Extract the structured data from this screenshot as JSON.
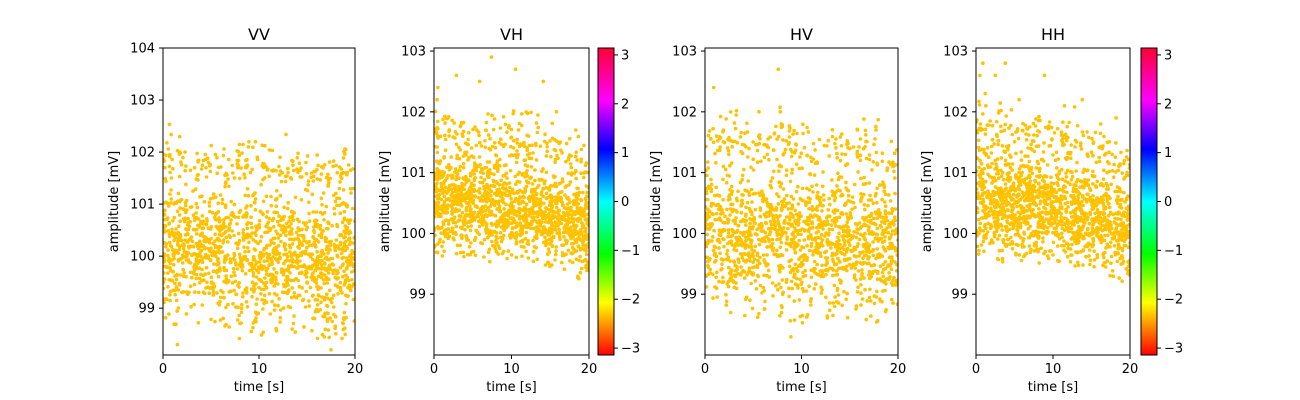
{
  "chart_data": [
    {
      "type": "scatter",
      "title": "VV",
      "xlabel": "time [s]",
      "ylabel": "amplitude [mV]",
      "xlim": [
        0,
        20
      ],
      "ylim": [
        98.1,
        104.0
      ],
      "xticks": [
        0,
        10,
        20
      ],
      "yticks": [
        99,
        100,
        101,
        102,
        103,
        104
      ],
      "point_color": "#ffc200",
      "colorbar": false,
      "series": [
        {
          "envelope": {
            "t": [
              0,
              1,
              2,
              3,
              4,
              5,
              6,
              7,
              8,
              9,
              10,
              11,
              12,
              13,
              14,
              15,
              16,
              17,
              18,
              19,
              20
            ],
            "upper": [
              101.8,
              101.5,
              101.7,
              101.6,
              101.5,
              101.6,
              101.5,
              101.5,
              101.7,
              101.6,
              101.6,
              101.5,
              101.6,
              101.5,
              101.5,
              101.4,
              101.5,
              101.4,
              101.5,
              101.6,
              101.3
            ],
            "lower": [
              98.6,
              98.7,
              98.6,
              98.7,
              98.6,
              98.5,
              98.6,
              98.6,
              98.4,
              98.5,
              98.4,
              98.6,
              98.5,
              98.5,
              98.5,
              98.6,
              98.4,
              98.4,
              98.4,
              98.4,
              98.6
            ]
          },
          "outliers": [
            [
              0.2,
              101.7
            ],
            [
              2.3,
              102.0
            ],
            [
              3.3,
              101.7
            ],
            [
              7.8,
              101.7
            ],
            [
              8.9,
              102.1
            ],
            [
              12.2,
              101.9
            ],
            [
              14.9,
              101.8
            ],
            [
              18.9,
              102.0
            ],
            [
              19.8,
              101.3
            ],
            [
              1.5,
              98.3
            ],
            [
              17.5,
              98.2
            ]
          ]
        }
      ]
    },
    {
      "type": "scatter",
      "title": "VH",
      "xlabel": "time [s]",
      "ylabel": "amplitude [mV]",
      "xlim": [
        0,
        20
      ],
      "ylim": [
        98.0,
        103.05
      ],
      "xticks": [
        0,
        10,
        20
      ],
      "yticks": [
        99,
        100,
        101,
        102,
        103
      ],
      "point_color": "#ffc200",
      "colorbar": true,
      "series": [
        {
          "envelope": {
            "t": [
              0,
              1,
              2,
              3,
              4,
              5,
              6,
              7,
              8,
              9,
              10,
              11,
              12,
              13,
              14,
              15,
              16,
              17,
              18,
              19,
              20
            ],
            "upper": [
              101.6,
              101.5,
              101.5,
              101.5,
              101.4,
              101.4,
              101.4,
              101.4,
              101.4,
              101.4,
              101.4,
              101.3,
              101.3,
              101.3,
              101.3,
              101.2,
              101.2,
              101.1,
              101.0,
              101.0,
              100.9
            ],
            "lower": [
              99.6,
              99.6,
              99.6,
              99.6,
              99.6,
              99.6,
              99.6,
              99.5,
              99.5,
              99.5,
              99.5,
              99.5,
              99.5,
              99.5,
              99.5,
              99.4,
              99.4,
              99.3,
              99.3,
              99.2,
              99.1
            ]
          },
          "outliers": [
            [
              0.5,
              102.4
            ],
            [
              0.4,
              102.2
            ],
            [
              2.9,
              102.6
            ],
            [
              5.9,
              102.5
            ],
            [
              7.4,
              102.9
            ],
            [
              10.5,
              102.7
            ],
            [
              14.1,
              102.5
            ],
            [
              15.8,
              102.0
            ],
            [
              18.3,
              101.7
            ],
            [
              19.8,
              101.0
            ]
          ]
        }
      ]
    },
    {
      "type": "scatter",
      "title": "HV",
      "xlabel": "time [s]",
      "ylabel": "amplitude [mV]",
      "xlim": [
        0,
        20
      ],
      "ylim": [
        98.0,
        103.05
      ],
      "xticks": [
        0,
        10,
        20
      ],
      "yticks": [
        99,
        100,
        101,
        102,
        103
      ],
      "point_color": "#ffc200",
      "colorbar": false,
      "series": [
        {
          "envelope": {
            "t": [
              0,
              1,
              2,
              3,
              4,
              5,
              6,
              7,
              8,
              9,
              10,
              11,
              12,
              13,
              14,
              15,
              16,
              17,
              18,
              19,
              20
            ],
            "upper": [
              101.5,
              101.3,
              101.3,
              101.4,
              101.3,
              101.2,
              101.3,
              101.3,
              101.6,
              101.3,
              101.3,
              101.2,
              101.3,
              101.3,
              101.2,
              101.2,
              101.3,
              101.1,
              101.2,
              101.1,
              100.9
            ],
            "lower": [
              98.6,
              98.7,
              98.7,
              98.6,
              98.6,
              98.6,
              98.6,
              98.6,
              98.3,
              98.6,
              98.5,
              98.7,
              98.6,
              98.6,
              98.5,
              98.6,
              98.5,
              98.6,
              98.5,
              98.6,
              98.7
            ]
          },
          "outliers": [
            [
              0.9,
              102.4
            ],
            [
              7.6,
              102.7
            ],
            [
              5.6,
              102.0
            ],
            [
              15.8,
              101.7
            ],
            [
              7.8,
              102.0
            ],
            [
              1.2,
              101.6
            ],
            [
              1.9,
              101.7
            ],
            [
              8.9,
              98.3
            ]
          ]
        }
      ]
    },
    {
      "type": "scatter",
      "title": "HH",
      "xlabel": "time [s]",
      "ylabel": "amplitude [mV]",
      "xlim": [
        0,
        20
      ],
      "ylim": [
        98.0,
        103.05
      ],
      "xticks": [
        0,
        10,
        20
      ],
      "yticks": [
        99,
        100,
        101,
        102,
        103
      ],
      "point_color": "#ffc200",
      "colorbar": true,
      "series": [
        {
          "envelope": {
            "t": [
              0,
              1,
              2,
              3,
              4,
              5,
              6,
              7,
              8,
              9,
              10,
              11,
              12,
              13,
              14,
              15,
              16,
              17,
              18,
              19,
              20
            ],
            "upper": [
              101.6,
              101.6,
              101.5,
              101.5,
              101.5,
              101.5,
              101.5,
              101.4,
              101.4,
              101.4,
              101.4,
              101.4,
              101.3,
              101.3,
              101.3,
              101.2,
              101.2,
              101.1,
              101.1,
              101.0,
              100.9
            ],
            "lower": [
              99.6,
              99.5,
              99.5,
              99.5,
              99.5,
              99.5,
              99.5,
              99.5,
              99.5,
              99.5,
              99.5,
              99.4,
              99.4,
              99.4,
              99.4,
              99.4,
              99.3,
              99.3,
              99.2,
              99.2,
              99.1
            ]
          },
          "outliers": [
            [
              0.5,
              102.6
            ],
            [
              0.9,
              102.8
            ],
            [
              3.8,
              102.8
            ],
            [
              1.2,
              102.3
            ],
            [
              2.5,
              102.6
            ],
            [
              8.9,
              102.6
            ],
            [
              11.5,
              102.1
            ],
            [
              13.8,
              102.2
            ],
            [
              16.2,
              101.8
            ],
            [
              18.2,
              101.9
            ],
            [
              5.6,
              102.2
            ]
          ]
        }
      ]
    }
  ],
  "colorbar": {
    "ticks": [
      3,
      2,
      1,
      0,
      -1,
      -2,
      -3
    ],
    "tick_labels": [
      "3",
      "2",
      "1",
      "0",
      "−1",
      "−2",
      "−3"
    ],
    "range": [
      -3.14159,
      3.14159
    ],
    "colormap": "hsv"
  }
}
